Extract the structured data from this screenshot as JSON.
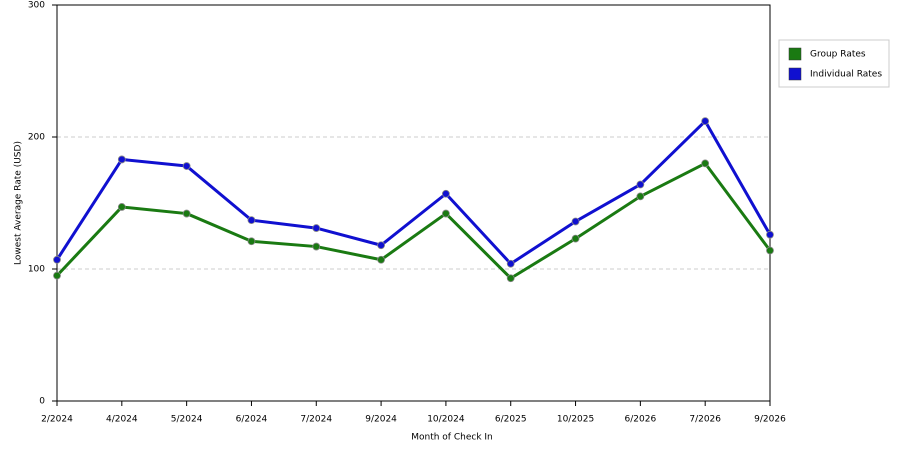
{
  "chart_data": {
    "type": "line",
    "x_label": "Month of Check In",
    "y_label": "Lowest Average Rate (USD)",
    "categories": [
      "2/2024",
      "4/2024",
      "5/2024",
      "6/2024",
      "7/2024",
      "9/2024",
      "10/2024",
      "6/2025",
      "10/2025",
      "6/2026",
      "7/2026",
      "9/2026"
    ],
    "series": [
      {
        "name": "Group Rates",
        "color": "#1a7a12",
        "values": [
          95,
          147,
          142,
          121,
          117,
          107,
          142,
          93,
          123,
          155,
          180,
          114
        ]
      },
      {
        "name": "Individual Rates",
        "color": "#1010d0",
        "values": [
          107,
          183,
          178,
          137,
          131,
          118,
          157,
          104,
          136,
          164,
          212,
          126
        ]
      }
    ],
    "ylim": [
      0,
      300
    ],
    "yticks": [
      0,
      100,
      200,
      300
    ],
    "grid": true,
    "legend": "top-right"
  }
}
